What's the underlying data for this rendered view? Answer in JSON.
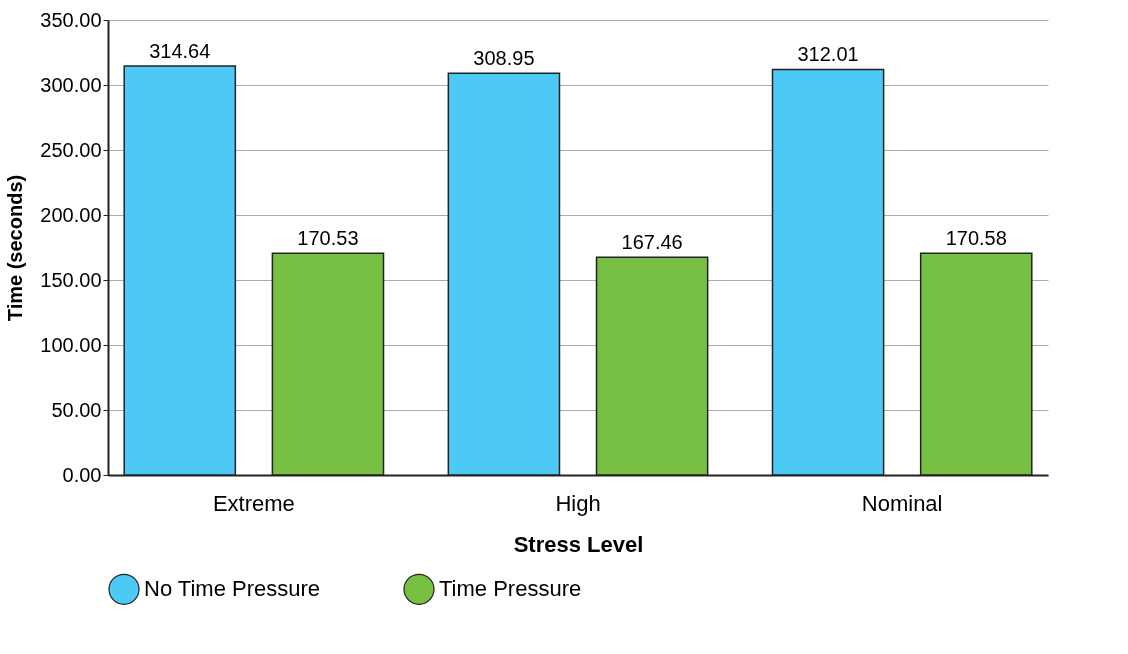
{
  "chart_data": {
    "type": "bar",
    "xlabel": "Stress Level",
    "ylabel": "Time (seconds)",
    "categories": [
      "Extreme",
      "High",
      "Nominal"
    ],
    "series": [
      {
        "name": "No Time Pressure",
        "color": "#4dc9f6",
        "values": [
          314.64,
          308.95,
          312.01
        ]
      },
      {
        "name": "Time Pressure",
        "color": "#77c043",
        "values": [
          170.53,
          167.46,
          170.58
        ]
      }
    ],
    "ylim": [
      0,
      350
    ],
    "yticks": [
      {
        "value": 0,
        "label": "0.00"
      },
      {
        "value": 50,
        "label": "50.00"
      },
      {
        "value": 100,
        "label": "100.00"
      },
      {
        "value": 150,
        "label": "150.00"
      },
      {
        "value": 200,
        "label": "200.00"
      },
      {
        "value": 250,
        "label": "250.00"
      },
      {
        "value": 300,
        "label": "300.00"
      },
      {
        "value": 350,
        "label": "350.00"
      }
    ],
    "grid": "y",
    "legend": "bottom",
    "data_labels": true
  }
}
